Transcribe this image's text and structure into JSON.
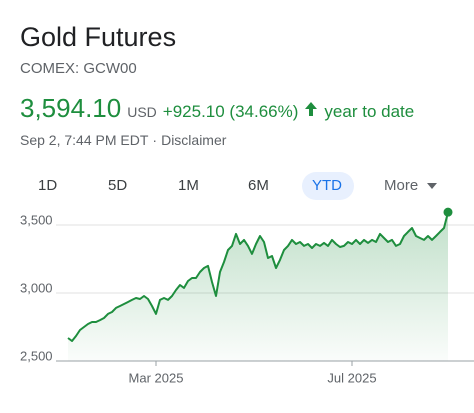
{
  "header": {
    "title": "Gold Futures",
    "ticker": "COMEX: GCW00",
    "price": "3,594.10",
    "currency": "USD",
    "change": "+925.10 (34.66%)",
    "period": "year to date",
    "timestamp": "Sep 2, 7:44 PM EDT",
    "separator": "·",
    "disclaimer": "Disclaimer"
  },
  "tabs": [
    "1D",
    "5D",
    "1M",
    "6M",
    "YTD"
  ],
  "more": "More",
  "chart_data": {
    "type": "area",
    "color": "#1e8e3e",
    "categories": [
      null,
      null,
      null,
      null,
      null,
      null,
      null,
      null,
      null,
      null,
      null,
      null,
      null,
      null,
      null,
      null,
      null,
      null,
      null,
      null,
      null,
      null,
      "Mar 2025",
      null,
      null,
      null,
      null,
      null,
      null,
      null,
      null,
      null,
      null,
      null,
      null,
      null,
      null,
      null,
      null,
      null,
      null,
      null,
      null,
      null,
      null,
      null,
      null,
      null,
      null,
      null,
      null,
      null,
      null,
      null,
      null,
      null,
      null,
      null,
      null,
      null,
      null,
      null,
      null,
      null,
      null,
      null,
      null,
      null,
      null,
      null,
      null,
      "Jul 2025",
      null,
      null,
      null,
      null,
      null,
      null,
      null,
      null,
      null,
      null,
      null,
      null,
      null,
      null,
      null,
      null,
      null,
      null,
      null,
      null,
      null,
      null,
      null,
      null
    ],
    "values": [
      2669,
      2647,
      2684,
      2728,
      2750,
      2772,
      2787,
      2787,
      2801,
      2816,
      2846,
      2860,
      2890,
      2904,
      2919,
      2934,
      2949,
      2963,
      2956,
      2978,
      2956,
      2904,
      2846,
      2949,
      2963,
      2949,
      2978,
      3022,
      3059,
      3037,
      3088,
      3110,
      3110,
      3154,
      3184,
      3199,
      3081,
      2978,
      3154,
      3228,
      3316,
      3346,
      3434,
      3360,
      3390,
      3346,
      3287,
      3360,
      3419,
      3375,
      3257,
      3272,
      3184,
      3243,
      3316,
      3346,
      3390,
      3360,
      3375,
      3346,
      3360,
      3331,
      3360,
      3346,
      3368,
      3346,
      3390,
      3360,
      3338,
      3346,
      3375,
      3360,
      3390,
      3360,
      3390,
      3368,
      3390,
      3375,
      3434,
      3404,
      3375,
      3390,
      3346,
      3360,
      3419,
      3449,
      3478,
      3419,
      3404,
      3390,
      3419,
      3390,
      3419,
      3449,
      3478,
      3594.1
    ],
    "ylim": [
      2500,
      3610
    ],
    "yticks": [
      {
        "value": 2500,
        "label": "2,500"
      },
      {
        "value": 3000,
        "label": "3,000"
      },
      {
        "value": 3500,
        "label": "3,500"
      }
    ],
    "grid": true
  }
}
